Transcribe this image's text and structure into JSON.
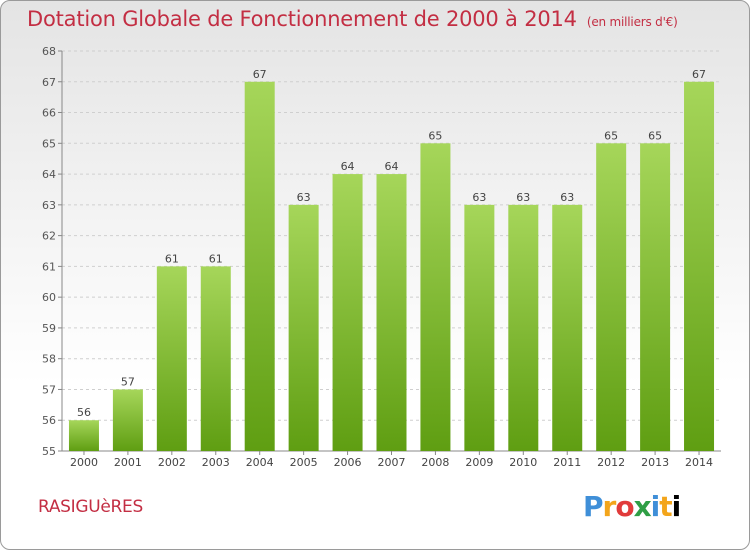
{
  "header": {
    "title": "Dotation Globale de Fonctionnement de 2000 à 2014",
    "subtitle": "(en milliers d'€)"
  },
  "footer": {
    "commune": "RASIGUèRES",
    "logo_text": "Proxiti"
  },
  "colors": {
    "bar_light": "#a6d65a",
    "bar_dark": "#5f9e12",
    "title": "#c32e43",
    "grid": "#cfcfcf"
  },
  "chart_data": {
    "type": "bar",
    "title": "Dotation Globale de Fonctionnement de 2000 à 2014",
    "subtitle": "(en milliers d'€)",
    "categories": [
      "2000",
      "2001",
      "2002",
      "2003",
      "2004",
      "2005",
      "2006",
      "2007",
      "2008",
      "2009",
      "2010",
      "2011",
      "2012",
      "2013",
      "2014"
    ],
    "values": [
      56,
      57,
      61,
      61,
      67,
      63,
      64,
      64,
      65,
      63,
      63,
      63,
      65,
      65,
      67
    ],
    "ylim": [
      55,
      68
    ],
    "yticks": [
      55,
      56,
      57,
      58,
      59,
      60,
      61,
      62,
      63,
      64,
      65,
      66,
      67,
      68
    ],
    "grid": true,
    "xlabel": "",
    "ylabel": ""
  }
}
